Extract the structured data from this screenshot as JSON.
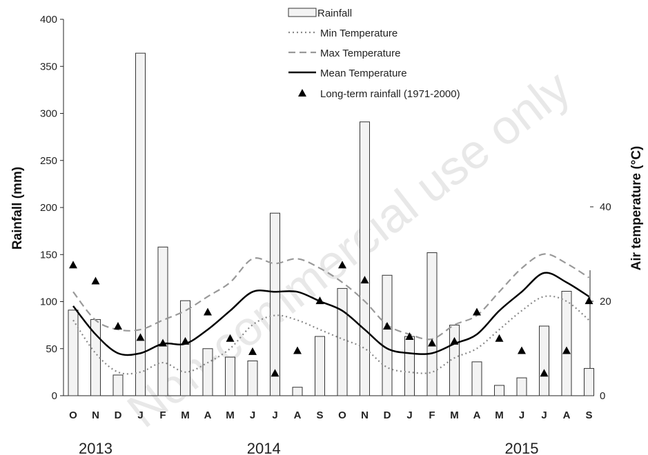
{
  "watermark": "Non-commercial use only",
  "chart_data": {
    "type": "bar",
    "categories": [
      "O",
      "N",
      "D",
      "J",
      "F",
      "M",
      "A",
      "M",
      "J",
      "J",
      "A",
      "S",
      "O",
      "N",
      "D",
      "J",
      "F",
      "M",
      "A",
      "M",
      "J",
      "J",
      "A",
      "S"
    ],
    "years": [
      {
        "label": "2013",
        "index": 1
      },
      {
        "label": "2014",
        "index": 8.5
      },
      {
        "label": "2015",
        "index": 20
      }
    ],
    "ylabel": "Rainfall (mm)",
    "y2label": "Air temperature (°C)",
    "ylim": [
      0,
      400
    ],
    "yticks": [
      0,
      50,
      100,
      150,
      200,
      250,
      300,
      350,
      400
    ],
    "y2lim": [
      0,
      60
    ],
    "y2ticks": [
      0,
      20,
      40
    ],
    "legend_position": "top-center",
    "series": [
      {
        "name": "Rainfall",
        "kind": "bar",
        "axis": "left",
        "values": [
          91,
          81,
          22,
          364,
          158,
          101,
          50,
          41,
          37,
          194,
          9,
          63,
          114,
          291,
          128,
          63,
          152,
          75,
          36,
          11,
          19,
          74,
          111,
          29
        ]
      },
      {
        "name": "Min Temperature",
        "kind": "line",
        "style": "dotted",
        "axis": "right",
        "color": "#888888",
        "values": [
          16,
          9,
          5,
          5,
          7,
          5,
          7,
          10,
          15,
          17,
          16,
          14,
          12,
          10,
          6,
          5,
          5,
          8,
          10,
          14,
          18,
          21,
          20,
          16
        ]
      },
      {
        "name": "Max Temperature",
        "kind": "line",
        "style": "dashed",
        "axis": "right",
        "color": "#999999",
        "values": [
          22,
          16,
          14,
          14,
          16,
          18,
          21,
          24,
          29,
          28,
          29,
          27,
          24,
          20,
          15,
          13,
          12,
          15,
          17,
          22,
          27,
          30,
          28,
          25
        ]
      },
      {
        "name": "Mean Temperature",
        "kind": "line",
        "style": "solid",
        "axis": "right",
        "color": "#000000",
        "values": [
          19,
          13,
          9,
          9,
          11,
          11,
          14,
          18,
          22,
          22,
          22,
          20,
          18,
          14,
          10,
          9,
          9,
          11,
          13,
          18,
          22,
          26,
          24,
          21
        ]
      },
      {
        "name": "Long-term rainfall (1971-2000)",
        "kind": "scatter",
        "marker": "triangle",
        "axis": "left",
        "values": [
          139,
          122,
          74,
          62,
          56,
          58,
          89,
          61,
          47,
          24,
          48,
          101,
          139,
          123,
          74,
          63,
          56,
          58,
          89,
          61,
          48,
          24,
          48,
          101
        ]
      }
    ]
  }
}
